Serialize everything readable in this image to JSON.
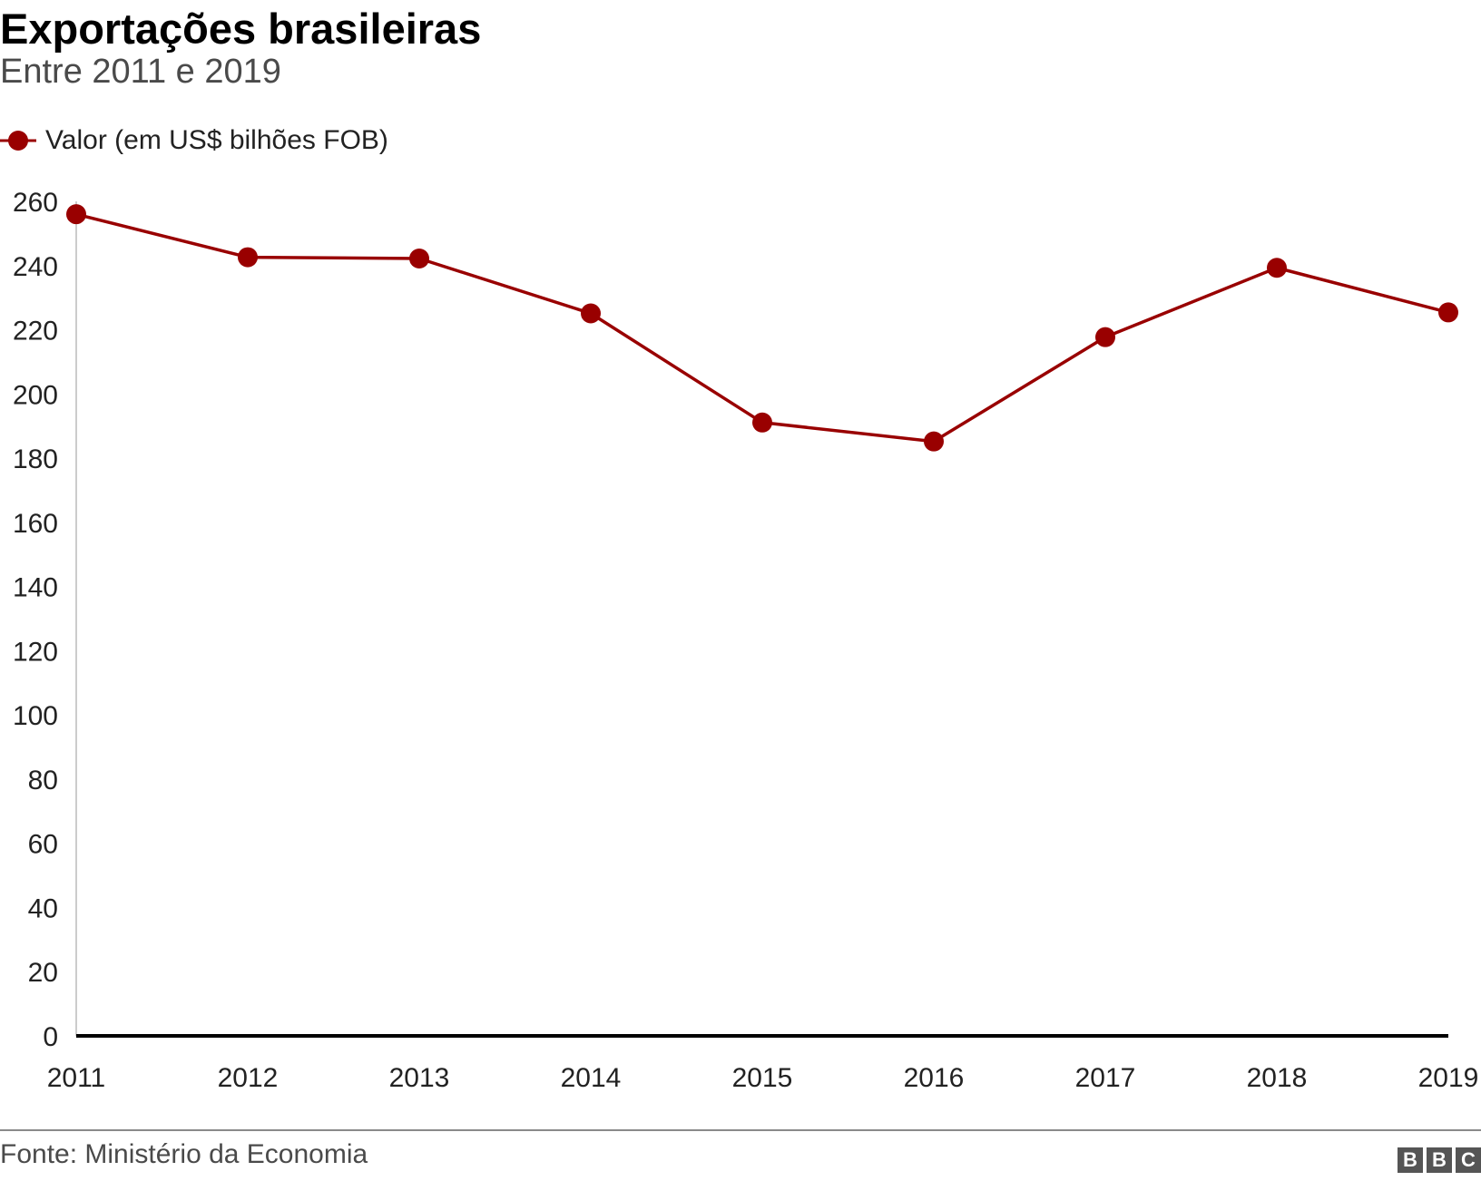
{
  "header": {
    "title": "Exportações brasileiras",
    "subtitle": "Entre 2011 e 2019"
  },
  "legend": {
    "label": "Valor (em US$ bilhões FOB)"
  },
  "colors": {
    "series": "#990000",
    "axis": "#000000",
    "gridline": "#cccccc",
    "text": "#222222"
  },
  "chart_data": {
    "type": "line",
    "title": "Exportações brasileiras",
    "subtitle": "Entre 2011 e 2019",
    "x": [
      "2011",
      "2012",
      "2013",
      "2014",
      "2015",
      "2016",
      "2017",
      "2018",
      "2019"
    ],
    "series": [
      {
        "name": "Valor (em US$ bilhões FOB)",
        "values": [
          256.0,
          242.6,
          242.2,
          225.1,
          191.1,
          185.2,
          217.7,
          239.3,
          225.4
        ]
      }
    ],
    "ylim": [
      0,
      260
    ],
    "yticks": [
      0,
      20,
      40,
      60,
      80,
      100,
      120,
      140,
      160,
      180,
      200,
      220,
      240,
      260
    ],
    "xlabel": "",
    "ylabel": "",
    "grid": false,
    "legend_position": "top-left"
  },
  "footer": {
    "source": "Fonte: Ministério da Economia",
    "logo": [
      "B",
      "B",
      "C"
    ]
  }
}
